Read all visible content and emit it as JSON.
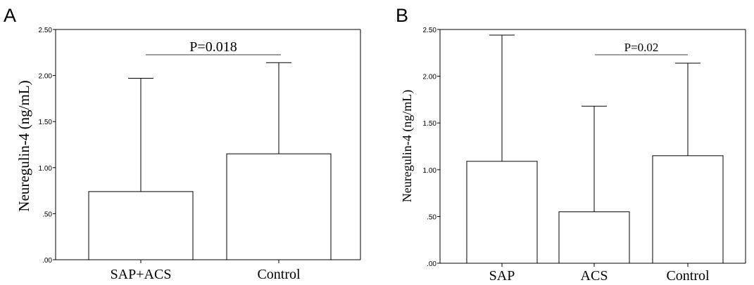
{
  "chart_data": [
    {
      "type": "bar",
      "panel": "A",
      "categories": [
        "SAP+ACS",
        "Control"
      ],
      "values": [
        0.74,
        1.15
      ],
      "error_upper": [
        1.97,
        2.14
      ],
      "ylabel": "Neuregulin-4 (ng/mL)",
      "xlabel": "",
      "ylim": [
        0,
        2.5
      ],
      "yticks": [
        ".00",
        ".50",
        "1.00",
        "1.50",
        "2.00",
        "2.50"
      ],
      "annotation": "P=0.018",
      "bar_fill": "#ffffff",
      "stroke_color": "#000000"
    },
    {
      "type": "bar",
      "panel": "B",
      "categories": [
        "SAP",
        "ACS",
        "Control"
      ],
      "values": [
        1.09,
        0.55,
        1.15
      ],
      "error_upper": [
        2.44,
        1.68,
        2.14
      ],
      "ylabel": "Neuregulin-4 (ng/mL)",
      "xlabel": "",
      "ylim": [
        0,
        2.5
      ],
      "yticks": [
        ".00",
        ".50",
        "1.00",
        "1.50",
        "2.00",
        "2.50"
      ],
      "annotation": "P=0.02",
      "bar_fill": "#ffffff",
      "stroke_color": "#000000"
    }
  ]
}
